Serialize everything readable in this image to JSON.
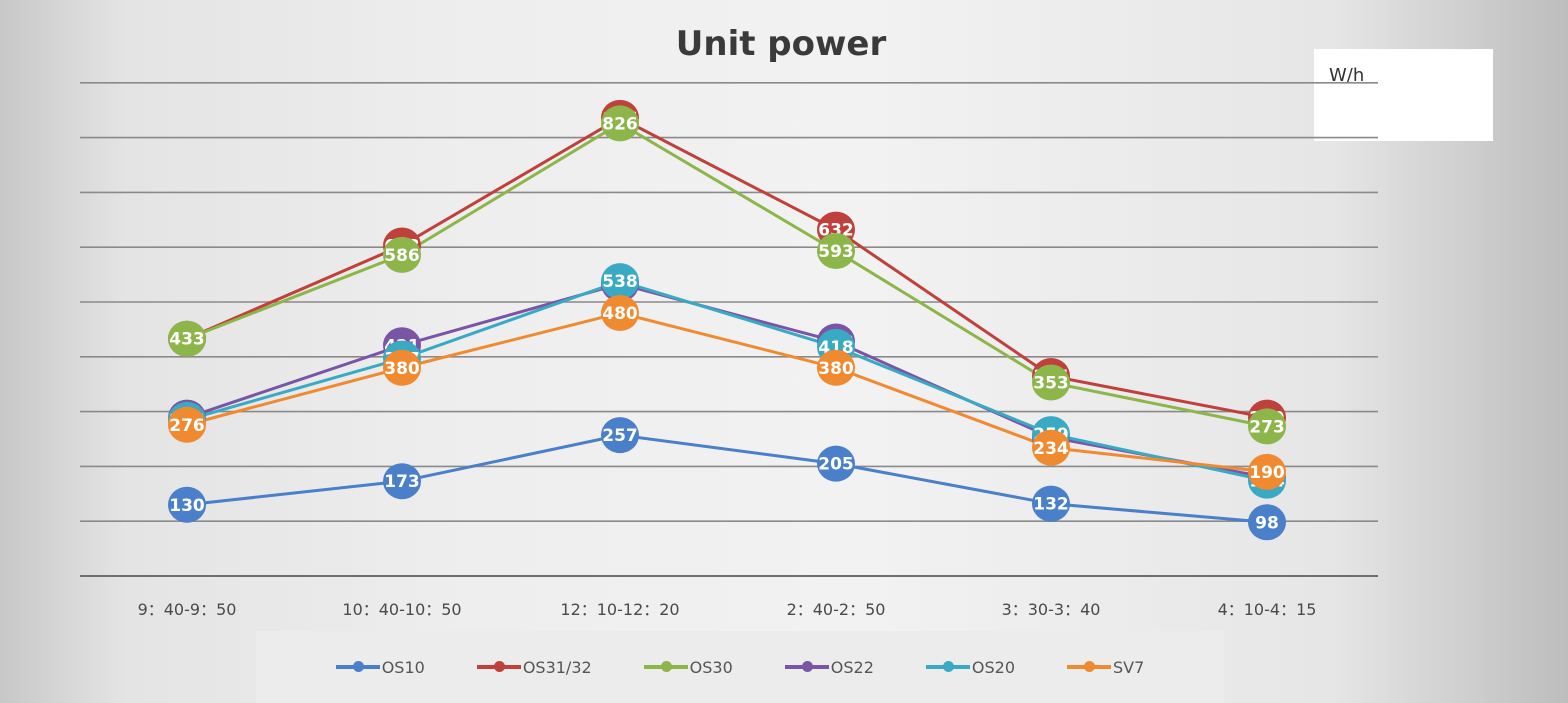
{
  "chart_data": {
    "type": "line",
    "title": "Unit power",
    "unit_label": "W/h",
    "xlabel": "",
    "ylabel": "",
    "ylim": [
      0,
      900
    ],
    "y_gridline_step": 100,
    "y_tick_labels_visible": false,
    "grid": true,
    "legend_position": "bottom",
    "categories": [
      "9：40-9：50",
      "10：40-10：50",
      "12：10-12：20",
      "2：40-2：50",
      "3：30-3：40",
      "4：10-4：15"
    ],
    "series": [
      {
        "name": "OS10",
        "color": "#4a7fc9",
        "values": [
          130,
          173,
          257,
          205,
          132,
          98
        ]
      },
      {
        "name": "OS31/32",
        "color": "#c0403c",
        "values": [
          433,
          603,
          836,
          632,
          365,
          289
        ]
      },
      {
        "name": "OS30",
        "color": "#8cb64a",
        "values": [
          433,
          586,
          826,
          593,
          353,
          273
        ]
      },
      {
        "name": "OS22",
        "color": "#7a55a6",
        "values": [
          289,
          421,
          533,
          428,
          253,
          180
        ]
      },
      {
        "name": "OS20",
        "color": "#3aa9c4",
        "values": [
          285,
          397,
          538,
          418,
          259,
          174
        ]
      },
      {
        "name": "SV7",
        "color": "#f08a30",
        "values": [
          276,
          380,
          480,
          380,
          234,
          190
        ]
      }
    ]
  },
  "labels": {
    "title": "Unit power",
    "unit": "W/h"
  }
}
